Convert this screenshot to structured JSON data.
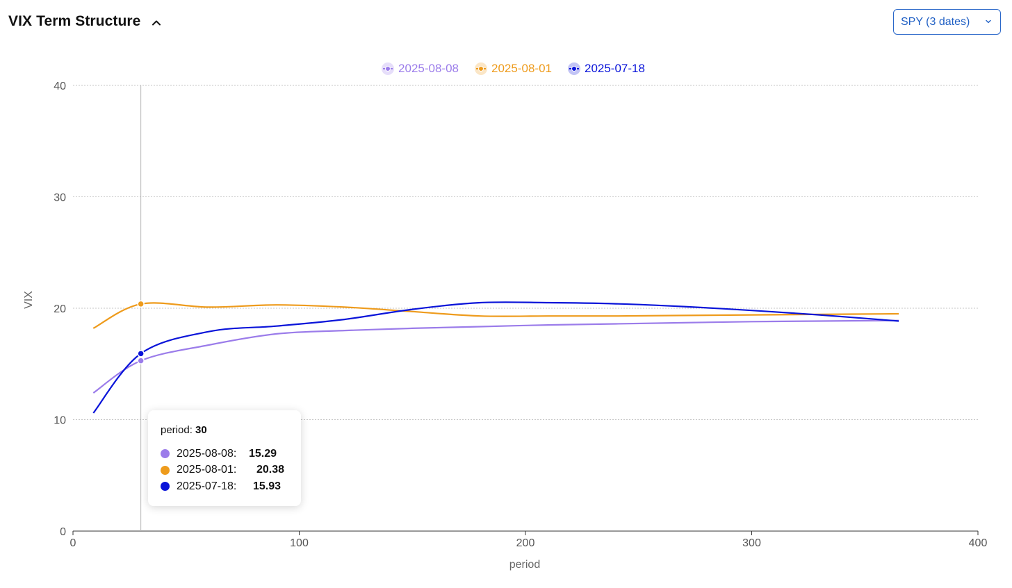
{
  "header": {
    "title": "VIX Term Structure",
    "select_value": "SPY (3 dates)"
  },
  "colors": {
    "series_a": "#9b7cea",
    "series_b": "#ee9b1c",
    "series_c": "#0a14d9",
    "select_accent": "#2a67c9"
  },
  "chart_data": {
    "type": "line",
    "title": "VIX Term Structure",
    "xlabel": "period",
    "ylabel": "VIX",
    "xlim": [
      0,
      400
    ],
    "ylim": [
      0,
      40
    ],
    "xticks": [
      0,
      100,
      200,
      300,
      400
    ],
    "yticks": [
      0,
      10,
      20,
      30,
      40
    ],
    "grid": "horizontal-dotted",
    "legend_position": "top-center",
    "x": [
      9,
      30,
      60,
      90,
      120,
      150,
      180,
      210,
      240,
      270,
      300,
      330,
      365
    ],
    "series": [
      {
        "name": "2025-08-08",
        "color": "#9b7cea",
        "values": [
          12.4,
          15.29,
          16.7,
          17.7,
          18.0,
          18.2,
          18.35,
          18.5,
          18.6,
          18.7,
          18.8,
          18.85,
          18.9
        ]
      },
      {
        "name": "2025-08-01",
        "color": "#ee9b1c",
        "values": [
          18.2,
          20.38,
          20.1,
          20.3,
          20.1,
          19.7,
          19.3,
          19.3,
          19.3,
          19.35,
          19.4,
          19.45,
          19.5
        ]
      },
      {
        "name": "2025-07-18",
        "color": "#0a14d9",
        "values": [
          10.6,
          15.93,
          17.9,
          18.4,
          19.0,
          19.9,
          20.5,
          20.5,
          20.4,
          20.15,
          19.8,
          19.4,
          18.85
        ]
      }
    ],
    "crosshair_x": 30
  },
  "tooltip": {
    "period_label": "period:",
    "period_value": "30",
    "rows": [
      {
        "label": "2025-08-08:",
        "value": "15.29"
      },
      {
        "label": "2025-08-01:",
        "value": "20.38"
      },
      {
        "label": "2025-07-18:",
        "value": "15.93"
      }
    ]
  }
}
